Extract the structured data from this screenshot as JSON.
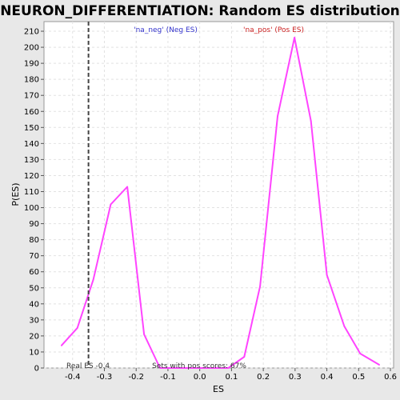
{
  "chart_data": {
    "type": "line",
    "title": "NEURON_DIFFERENTIATION: Random ES distribution",
    "xlabel": "ES",
    "ylabel": "P(ES)",
    "xlim": [
      -0.49,
      0.61
    ],
    "ylim": [
      0,
      216
    ],
    "x_ticks": [
      "-0.4",
      "-0.3",
      "-0.2",
      "-0.1",
      "0.0",
      "0.1",
      "0.2",
      "0.3",
      "0.4",
      "0.5",
      "0.6"
    ],
    "y_ticks": [
      "0",
      "10",
      "20",
      "30",
      "40",
      "50",
      "60",
      "70",
      "80",
      "90",
      "100",
      "110",
      "120",
      "130",
      "140",
      "150",
      "160",
      "170",
      "180",
      "190",
      "200",
      "210"
    ],
    "grid": true,
    "series": [
      {
        "color": "#ff44ff",
        "points": [
          [
            -0.435,
            14
          ],
          [
            -0.385,
            25
          ],
          [
            -0.335,
            55
          ],
          [
            -0.28,
            102
          ],
          [
            -0.228,
            113
          ],
          [
            -0.175,
            21
          ],
          [
            -0.125,
            0
          ],
          [
            -0.075,
            0
          ],
          [
            0.0,
            0
          ],
          [
            0.09,
            0
          ],
          [
            0.14,
            7
          ],
          [
            0.19,
            51
          ],
          [
            0.245,
            157
          ],
          [
            0.298,
            206
          ],
          [
            0.35,
            154
          ],
          [
            0.4,
            58
          ],
          [
            0.455,
            26
          ],
          [
            0.505,
            9
          ],
          [
            0.565,
            2
          ]
        ]
      }
    ],
    "real_es": -0.35,
    "annotations": {
      "neg_label": "'na_neg' (Neg ES)",
      "pos_label": "'na_pos' (Pos ES)",
      "real_es_label": "Real ES -0.4",
      "sets_label": "Sets with pos scores: 67%"
    },
    "colors": {
      "neg_label": "#3333cc",
      "pos_label": "#cc2222",
      "real_es_line": "#444444",
      "grid": "#e2e2e2"
    }
  }
}
